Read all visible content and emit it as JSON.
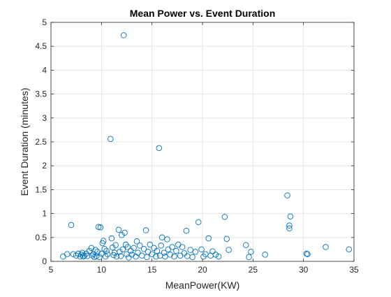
{
  "chart_data": {
    "type": "scatter",
    "title": "Mean Power vs. Event Duration",
    "xlabel": "MeanPower(KW)",
    "ylabel": "Event Duration (minutes)",
    "xlim": [
      5,
      35
    ],
    "ylim": [
      0,
      5
    ],
    "xticks": [
      5,
      10,
      15,
      20,
      25,
      30,
      35
    ],
    "yticks": [
      0,
      0.5,
      1,
      1.5,
      2,
      2.5,
      3,
      3.5,
      4,
      4.5,
      5
    ],
    "xtick_labels": [
      "5",
      "10",
      "15",
      "20",
      "25",
      "30",
      "35"
    ],
    "ytick_labels": [
      "0",
      "0.5",
      "1",
      "1.5",
      "2",
      "2.5",
      "3",
      "3.5",
      "4",
      "4.5",
      "5"
    ],
    "grid": true,
    "marker": "open-circle",
    "color": "#0072BD",
    "points": [
      [
        6.2,
        0.1
      ],
      [
        6.6,
        0.15
      ],
      [
        7.0,
        0.76
      ],
      [
        7.2,
        0.15
      ],
      [
        7.5,
        0.12
      ],
      [
        7.7,
        0.16
      ],
      [
        7.9,
        0.1
      ],
      [
        8.0,
        0.14
      ],
      [
        8.1,
        0.18
      ],
      [
        8.2,
        0.1
      ],
      [
        8.3,
        0.12
      ],
      [
        8.5,
        0.16
      ],
      [
        8.6,
        0.11
      ],
      [
        8.8,
        0.22
      ],
      [
        9.0,
        0.28
      ],
      [
        9.1,
        0.12
      ],
      [
        9.2,
        0.15
      ],
      [
        9.3,
        0.09
      ],
      [
        9.4,
        0.24
      ],
      [
        9.5,
        0.11
      ],
      [
        9.6,
        0.2
      ],
      [
        9.7,
        0.72
      ],
      [
        9.8,
        0.09
      ],
      [
        9.9,
        0.71
      ],
      [
        10.0,
        0.16
      ],
      [
        10.1,
        0.38
      ],
      [
        10.2,
        0.43
      ],
      [
        10.3,
        0.26
      ],
      [
        10.4,
        0.1
      ],
      [
        10.5,
        0.22
      ],
      [
        10.6,
        0.15
      ],
      [
        10.9,
        2.56
      ],
      [
        11.0,
        0.48
      ],
      [
        11.1,
        0.29
      ],
      [
        11.2,
        0.13
      ],
      [
        11.3,
        0.18
      ],
      [
        11.4,
        0.34
      ],
      [
        11.5,
        0.1
      ],
      [
        11.7,
        0.66
      ],
      [
        11.8,
        0.2
      ],
      [
        11.9,
        0.11
      ],
      [
        12.0,
        0.55
      ],
      [
        12.1,
        0.25
      ],
      [
        12.2,
        4.73
      ],
      [
        12.3,
        0.6
      ],
      [
        12.4,
        0.35
      ],
      [
        12.5,
        0.15
      ],
      [
        12.6,
        0.3
      ],
      [
        12.7,
        0.08
      ],
      [
        12.9,
        0.22
      ],
      [
        13.0,
        0.14
      ],
      [
        13.2,
        0.28
      ],
      [
        13.4,
        0.1
      ],
      [
        13.5,
        0.42
      ],
      [
        13.6,
        0.18
      ],
      [
        13.8,
        0.33
      ],
      [
        14.0,
        0.12
      ],
      [
        14.2,
        0.26
      ],
      [
        14.4,
        0.65
      ],
      [
        14.5,
        0.09
      ],
      [
        14.6,
        0.2
      ],
      [
        14.8,
        0.35
      ],
      [
        15.0,
        0.15
      ],
      [
        15.2,
        0.28
      ],
      [
        15.4,
        0.1
      ],
      [
        15.5,
        0.22
      ],
      [
        15.7,
        2.37
      ],
      [
        15.8,
        0.12
      ],
      [
        15.9,
        0.33
      ],
      [
        16.0,
        0.5
      ],
      [
        16.2,
        0.18
      ],
      [
        16.3,
        0.1
      ],
      [
        16.5,
        0.46
      ],
      [
        16.6,
        0.25
      ],
      [
        16.8,
        0.14
      ],
      [
        17.0,
        0.3
      ],
      [
        17.2,
        0.1
      ],
      [
        17.4,
        0.22
      ],
      [
        17.6,
        0.35
      ],
      [
        17.8,
        0.12
      ],
      [
        18.0,
        0.3
      ],
      [
        18.2,
        0.17
      ],
      [
        18.4,
        0.64
      ],
      [
        18.5,
        0.11
      ],
      [
        18.8,
        0.24
      ],
      [
        19.0,
        0.09
      ],
      [
        19.3,
        0.2
      ],
      [
        19.6,
        0.82
      ],
      [
        19.9,
        0.25
      ],
      [
        20.1,
        0.1
      ],
      [
        20.3,
        0.15
      ],
      [
        20.6,
        0.48
      ],
      [
        20.8,
        0.12
      ],
      [
        21.0,
        0.21
      ],
      [
        21.3,
        0.14
      ],
      [
        21.6,
        0.1
      ],
      [
        22.2,
        0.93
      ],
      [
        22.4,
        0.47
      ],
      [
        22.6,
        0.24
      ],
      [
        24.3,
        0.34
      ],
      [
        24.6,
        0.09
      ],
      [
        24.8,
        0.2
      ],
      [
        26.2,
        0.14
      ],
      [
        28.4,
        1.38
      ],
      [
        28.6,
        0.69
      ],
      [
        28.6,
        0.75
      ],
      [
        28.7,
        0.94
      ],
      [
        30.3,
        0.16
      ],
      [
        30.4,
        0.15
      ],
      [
        32.2,
        0.3
      ],
      [
        34.5,
        0.25
      ]
    ]
  }
}
